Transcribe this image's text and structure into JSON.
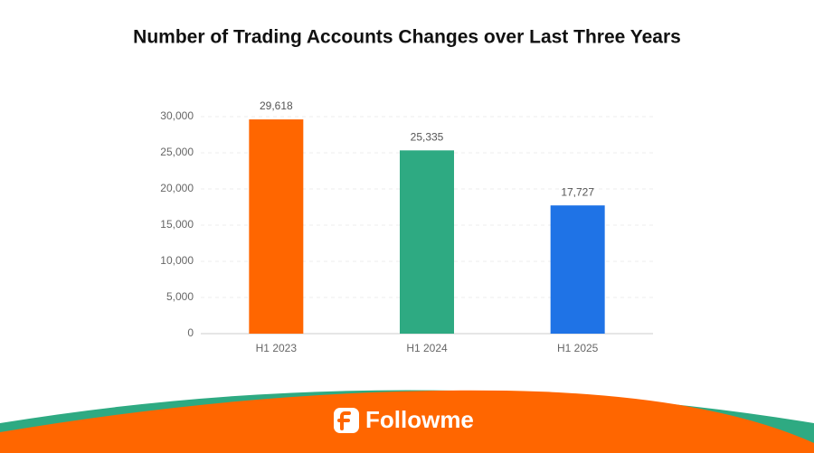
{
  "chart_data": {
    "type": "bar",
    "title": "Number of Trading Accounts Changes over Last Three Years",
    "categories": [
      "H1 2023",
      "H1 2024",
      "H1 2025"
    ],
    "values": [
      29618,
      25335,
      17727
    ],
    "value_labels": [
      "29,618",
      "25,335",
      "17,727"
    ],
    "colors": [
      "#ff6600",
      "#2eaa82",
      "#1f73e6"
    ],
    "ylim": [
      0,
      30000
    ],
    "yticks": [
      0,
      {
        "value": 5000,
        "label": "5,000"
      },
      {
        "value": 10000,
        "label": "10,000"
      },
      {
        "value": 15000,
        "label": "15,000"
      },
      {
        "value": 20000,
        "label": "20,000"
      },
      {
        "value": 25000,
        "label": "25,000"
      },
      {
        "value": 30000,
        "label": "30,000"
      }
    ],
    "grid": true
  },
  "footer": {
    "brand": "Followme"
  }
}
